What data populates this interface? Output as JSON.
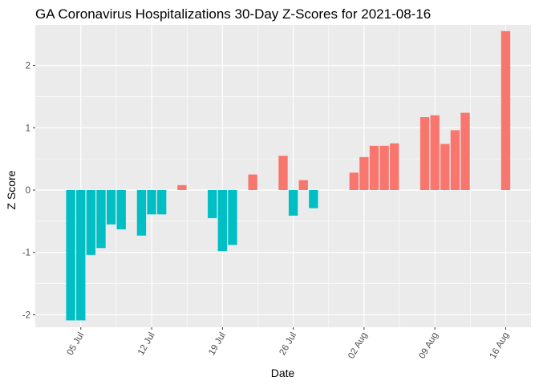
{
  "chart_data": {
    "type": "bar",
    "title": "GA Coronavirus Hospitalizations 30-Day Z-Scores for 2021-08-16",
    "xlabel": "Date",
    "ylabel": "Z Score",
    "ylim": [
      -2.2,
      2.65
    ],
    "yticks": [
      -2,
      -1,
      0,
      1,
      2
    ],
    "x_tick_labels": [
      {
        "label": "05 Jul",
        "day": 0
      },
      {
        "label": "12 Jul",
        "day": 7
      },
      {
        "label": "19 Jul",
        "day": 14
      },
      {
        "label": "26 Jul",
        "day": 21
      },
      {
        "label": "02 Aug",
        "day": 28
      },
      {
        "label": "09 Aug",
        "day": 35
      },
      {
        "label": "16 Aug",
        "day": 42
      }
    ],
    "day_origin": "2021-07-05",
    "colors": {
      "negative": "#00BFC4",
      "positive": "#F8766D",
      "panel": "#EBEBEB",
      "grid": "#FFFFFF"
    },
    "bars": [
      {
        "day": -1,
        "value": -2.09
      },
      {
        "day": 0,
        "value": -2.09
      },
      {
        "day": 1,
        "value": -1.04
      },
      {
        "day": 2,
        "value": -0.93
      },
      {
        "day": 3,
        "value": -0.55
      },
      {
        "day": 4,
        "value": -0.63
      },
      {
        "day": 6,
        "value": -0.73
      },
      {
        "day": 7,
        "value": -0.39
      },
      {
        "day": 8,
        "value": -0.39
      },
      {
        "day": 10,
        "value": 0.08
      },
      {
        "day": 13,
        "value": -0.45
      },
      {
        "day": 14,
        "value": -0.98
      },
      {
        "day": 15,
        "value": -0.88
      },
      {
        "day": 17,
        "value": 0.25
      },
      {
        "day": 20,
        "value": 0.55
      },
      {
        "day": 21,
        "value": -0.41
      },
      {
        "day": 22,
        "value": 0.16
      },
      {
        "day": 23,
        "value": -0.29
      },
      {
        "day": 27,
        "value": 0.28
      },
      {
        "day": 28,
        "value": 0.53
      },
      {
        "day": 29,
        "value": 0.71
      },
      {
        "day": 30,
        "value": 0.71
      },
      {
        "day": 31,
        "value": 0.75
      },
      {
        "day": 34,
        "value": 1.17
      },
      {
        "day": 35,
        "value": 1.2
      },
      {
        "day": 36,
        "value": 0.74
      },
      {
        "day": 37,
        "value": 0.96
      },
      {
        "day": 38,
        "value": 1.24
      },
      {
        "day": 42,
        "value": 2.55
      }
    ]
  }
}
